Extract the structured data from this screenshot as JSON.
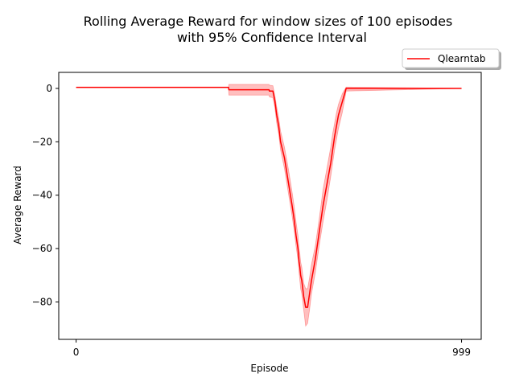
{
  "chart_data": {
    "type": "line",
    "title_line1": "Rolling Average Reward for window sizes of 100 episodes",
    "title_line2": "with 95% Confidence Interval",
    "xlabel": "Episode",
    "ylabel": "Average Reward",
    "xlim": [
      -45,
      1050
    ],
    "ylim": [
      -94,
      6
    ],
    "x_ticks": [
      0,
      999
    ],
    "y_ticks": [
      0,
      -20,
      -40,
      -60,
      -80
    ],
    "grid": false,
    "legend_position": "top-right, above axes",
    "series": [
      {
        "name": "Qlearntab",
        "color": "#ff0000",
        "band_color": "#ff0000",
        "x": [
          0,
          395,
          396,
          425,
          500,
          501,
          510,
          515,
          520,
          525,
          530,
          540,
          550,
          560,
          565,
          570,
          575,
          578,
          580,
          582,
          585,
          590,
          595,
          600,
          605,
          610,
          620,
          630,
          640,
          650,
          660,
          665,
          670,
          675,
          680,
          690,
          700,
          999
        ],
        "mean": [
          0.4,
          0.4,
          -0.5,
          -0.5,
          -0.5,
          -1.0,
          -1.0,
          -4.5,
          -10,
          -14,
          -20,
          -26,
          -35,
          -44,
          -49,
          -55,
          -60,
          -65,
          -67,
          -70,
          -72,
          -78,
          -82,
          -82,
          -77,
          -72,
          -64,
          -54,
          -44,
          -36,
          -28,
          -23,
          -18,
          -14,
          -10,
          -5,
          0,
          0
        ],
        "upper": [
          0.4,
          0.4,
          1.5,
          1.5,
          1.5,
          1.2,
          1.0,
          -2.5,
          -7,
          -11,
          -16,
          -22,
          -30,
          -39,
          -44,
          -50,
          -55,
          -60,
          -62,
          -65,
          -67,
          -73,
          -75,
          -75,
          -71,
          -66,
          -59,
          -49,
          -38,
          -30,
          -22,
          -17,
          -13,
          -9,
          -6,
          -2,
          0.5,
          0
        ],
        "lower": [
          0.4,
          0.4,
          -2.5,
          -2.5,
          -2.5,
          -3.2,
          -3.5,
          -7,
          -13,
          -17,
          -23,
          -30,
          -39,
          -48,
          -53,
          -59,
          -64,
          -69,
          -72,
          -75,
          -77,
          -83,
          -89,
          -88,
          -83,
          -77,
          -69,
          -59,
          -50,
          -42,
          -33,
          -28,
          -23,
          -19,
          -15,
          -9,
          -1,
          0
        ]
      }
    ]
  }
}
